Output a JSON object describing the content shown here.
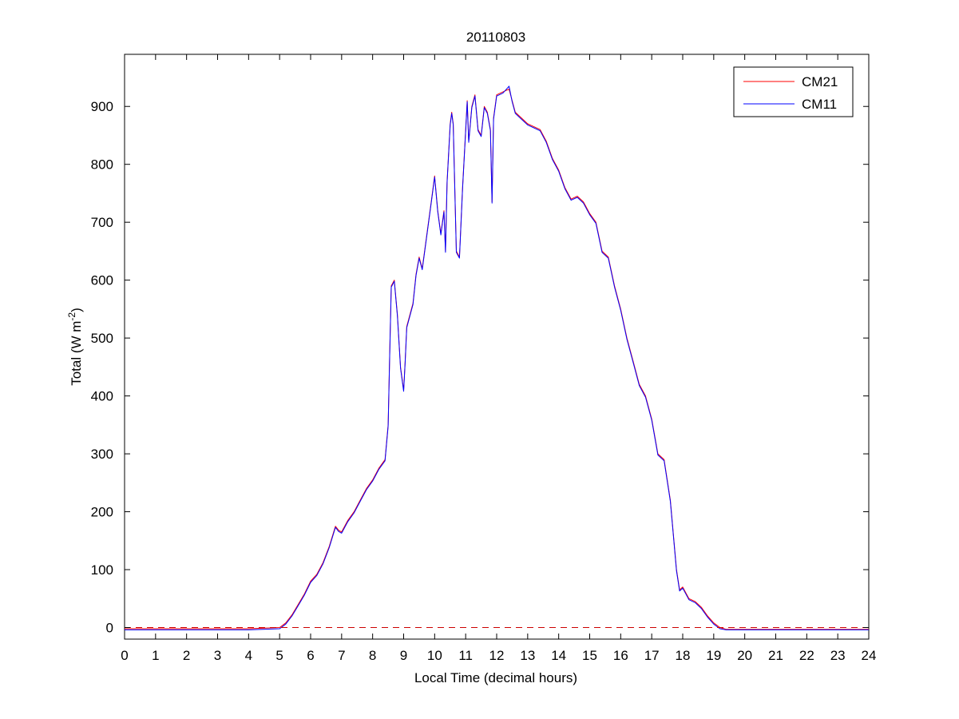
{
  "chart_data": {
    "type": "line",
    "title": "20110803",
    "xlabel": "Local Time (decimal hours)",
    "ylabel": {
      "base": "Total (W m",
      "sup": "-2",
      "tail": ")"
    },
    "xlim": [
      0,
      24
    ],
    "ylim": [
      -20,
      990
    ],
    "xticks": [
      0,
      1,
      2,
      3,
      4,
      5,
      6,
      7,
      8,
      9,
      10,
      11,
      12,
      13,
      14,
      15,
      16,
      17,
      18,
      19,
      20,
      21,
      22,
      23,
      24
    ],
    "yticks": [
      0,
      100,
      200,
      300,
      400,
      500,
      600,
      700,
      800,
      900
    ],
    "grid": false,
    "legend": "top-right",
    "reference_line": {
      "y": 0,
      "style": "dashed"
    },
    "series": [
      {
        "name": "CM21",
        "color": "#ff0000",
        "x": [
          0,
          1,
          2,
          3,
          4,
          5,
          5.2,
          5.4,
          5.6,
          5.8,
          6.0,
          6.2,
          6.4,
          6.6,
          6.8,
          6.9,
          7.0,
          7.2,
          7.4,
          7.6,
          7.8,
          8.0,
          8.2,
          8.4,
          8.5,
          8.55,
          8.6,
          8.7,
          8.8,
          8.9,
          9.0,
          9.05,
          9.1,
          9.2,
          9.3,
          9.4,
          9.5,
          9.6,
          9.7,
          9.8,
          9.9,
          10.0,
          10.1,
          10.2,
          10.3,
          10.35,
          10.4,
          10.5,
          10.55,
          10.6,
          10.7,
          10.8,
          10.9,
          11.0,
          11.05,
          11.1,
          11.2,
          11.3,
          11.4,
          11.5,
          11.6,
          11.7,
          11.8,
          11.85,
          11.9,
          12.0,
          12.2,
          12.4,
          12.5,
          12.6,
          12.8,
          13.0,
          13.2,
          13.4,
          13.6,
          13.8,
          14.0,
          14.2,
          14.4,
          14.6,
          14.8,
          15.0,
          15.2,
          15.4,
          15.6,
          15.8,
          16.0,
          16.2,
          16.4,
          16.6,
          16.8,
          17.0,
          17.2,
          17.4,
          17.6,
          17.8,
          17.9,
          18.0,
          18.2,
          18.4,
          18.6,
          18.8,
          19.0,
          19.2,
          19.4,
          19.6,
          20,
          21,
          22,
          23,
          24
        ],
        "values": [
          -2,
          -2,
          -2,
          -2,
          -2,
          0,
          8,
          22,
          40,
          58,
          80,
          92,
          112,
          140,
          175,
          168,
          165,
          185,
          200,
          220,
          240,
          255,
          275,
          290,
          350,
          470,
          590,
          600,
          540,
          450,
          410,
          460,
          520,
          540,
          560,
          610,
          640,
          620,
          660,
          700,
          740,
          780,
          720,
          680,
          720,
          650,
          770,
          870,
          890,
          870,
          650,
          640,
          760,
          860,
          910,
          840,
          900,
          920,
          860,
          850,
          900,
          890,
          860,
          735,
          880,
          920,
          925,
          930,
          910,
          890,
          880,
          870,
          865,
          860,
          840,
          810,
          790,
          760,
          740,
          745,
          735,
          715,
          700,
          650,
          640,
          590,
          550,
          500,
          460,
          420,
          400,
          360,
          300,
          290,
          220,
          100,
          65,
          70,
          50,
          45,
          35,
          20,
          8,
          0,
          -3,
          -3,
          -3,
          -3,
          -3,
          -3,
          -3
        ]
      },
      {
        "name": "CM11",
        "color": "#0000ff",
        "x": [
          0,
          1,
          2,
          3,
          4,
          5,
          5.2,
          5.4,
          5.6,
          5.8,
          6.0,
          6.2,
          6.4,
          6.6,
          6.8,
          6.9,
          7.0,
          7.2,
          7.4,
          7.6,
          7.8,
          8.0,
          8.2,
          8.4,
          8.5,
          8.55,
          8.6,
          8.7,
          8.8,
          8.9,
          9.0,
          9.05,
          9.1,
          9.2,
          9.3,
          9.4,
          9.5,
          9.6,
          9.7,
          9.8,
          9.9,
          10.0,
          10.1,
          10.2,
          10.3,
          10.35,
          10.4,
          10.5,
          10.55,
          10.6,
          10.7,
          10.8,
          10.9,
          11.0,
          11.05,
          11.1,
          11.2,
          11.3,
          11.4,
          11.5,
          11.6,
          11.7,
          11.8,
          11.85,
          11.9,
          12.0,
          12.2,
          12.4,
          12.5,
          12.6,
          12.8,
          13.0,
          13.2,
          13.4,
          13.6,
          13.8,
          14.0,
          14.2,
          14.4,
          14.6,
          14.8,
          15.0,
          15.2,
          15.4,
          15.6,
          15.8,
          16.0,
          16.2,
          16.4,
          16.6,
          16.8,
          17.0,
          17.2,
          17.4,
          17.6,
          17.8,
          17.9,
          18.0,
          18.2,
          18.4,
          18.6,
          18.8,
          19.0,
          19.2,
          19.4,
          19.6,
          20,
          21,
          22,
          23,
          24
        ],
        "values": [
          -4,
          -4,
          -4,
          -4,
          -4,
          -2,
          6,
          20,
          38,
          56,
          78,
          90,
          110,
          138,
          173,
          166,
          163,
          183,
          198,
          218,
          238,
          253,
          273,
          288,
          348,
          468,
          588,
          598,
          538,
          448,
          408,
          458,
          518,
          538,
          558,
          608,
          638,
          618,
          658,
          698,
          738,
          778,
          718,
          678,
          718,
          648,
          768,
          868,
          888,
          868,
          648,
          638,
          758,
          858,
          908,
          838,
          898,
          918,
          858,
          848,
          898,
          888,
          858,
          733,
          878,
          918,
          923,
          935,
          908,
          888,
          878,
          868,
          863,
          858,
          838,
          808,
          788,
          758,
          738,
          743,
          733,
          713,
          698,
          648,
          638,
          588,
          548,
          498,
          458,
          418,
          398,
          358,
          298,
          288,
          218,
          98,
          63,
          68,
          48,
          43,
          33,
          18,
          6,
          -2,
          -4,
          -4,
          -4,
          -4,
          -4,
          -4,
          -4
        ]
      }
    ]
  }
}
